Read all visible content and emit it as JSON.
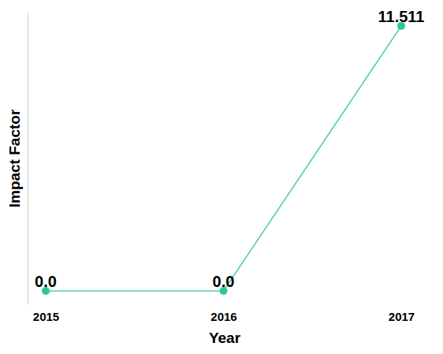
{
  "chart_data": {
    "type": "line",
    "x_label": "Year",
    "y_label": "Impact Factor",
    "categories": [
      "2015",
      "2016",
      "2017"
    ],
    "values": [
      0,
      0,
      11.511
    ],
    "value_labels": [
      "0.0",
      "0.0",
      "11.511"
    ],
    "data_labels": true,
    "color": "#2bc79b",
    "marker": "circle",
    "line_style": "solid",
    "ylim": [
      -0.58,
      12.09
    ],
    "yticks": [],
    "tick_labels": "x"
  }
}
